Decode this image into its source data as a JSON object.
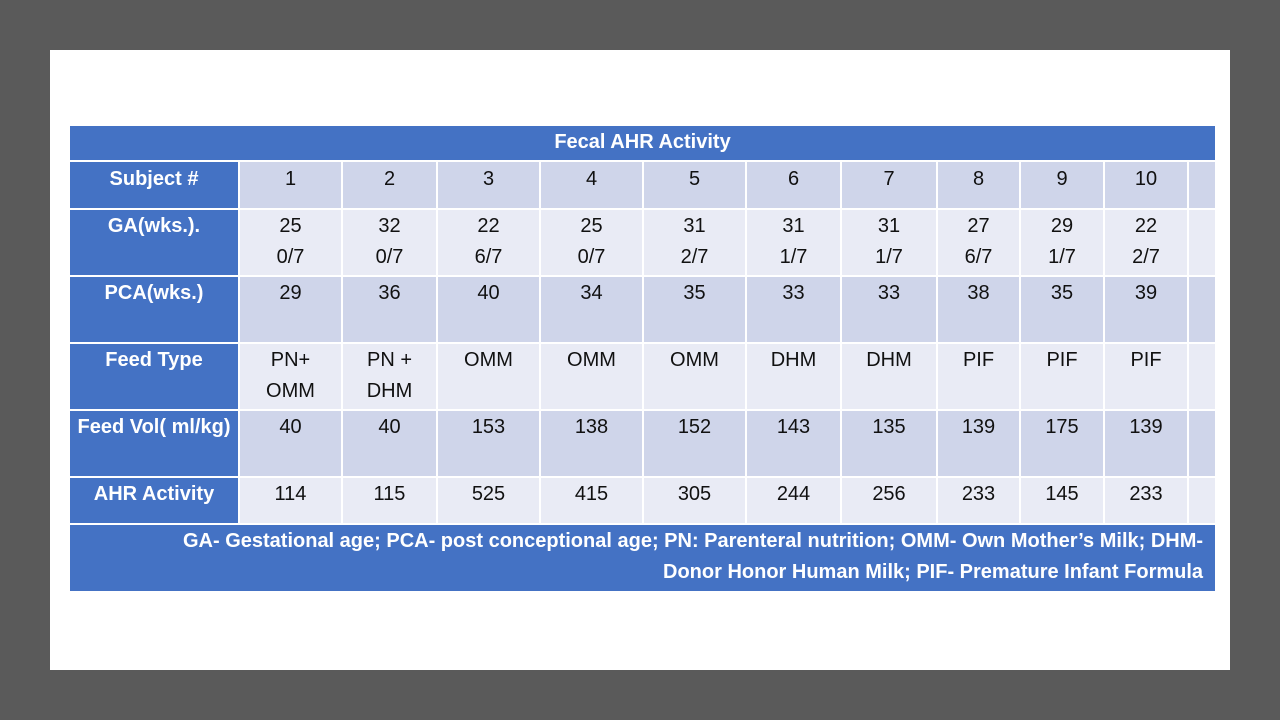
{
  "table": {
    "title": "Fecal AHR Activity",
    "rows": [
      {
        "header": [
          "Subject #"
        ],
        "cells": [
          [
            "1"
          ],
          [
            "2"
          ],
          [
            "3"
          ],
          [
            "4"
          ],
          [
            "5"
          ],
          [
            "6"
          ],
          [
            "7"
          ],
          [
            "8"
          ],
          [
            "9"
          ],
          [
            "10"
          ],
          [
            ""
          ]
        ]
      },
      {
        "header": [
          "GA",
          "(wks.)."
        ],
        "cells": [
          [
            "25",
            "0/7"
          ],
          [
            "32",
            "0/7"
          ],
          [
            "22",
            "6/7"
          ],
          [
            "25",
            "0/7"
          ],
          [
            "31",
            "2/7"
          ],
          [
            "31",
            "1/7"
          ],
          [
            "31",
            "1/7"
          ],
          [
            "27",
            "6/7"
          ],
          [
            "29",
            "1/7"
          ],
          [
            "22",
            "2/7"
          ],
          [
            ""
          ]
        ]
      },
      {
        "header": [
          "PCA",
          "(wks.)"
        ],
        "cells": [
          [
            "29"
          ],
          [
            "36"
          ],
          [
            "40"
          ],
          [
            "34"
          ],
          [
            "35"
          ],
          [
            "33"
          ],
          [
            "33"
          ],
          [
            "38"
          ],
          [
            "35"
          ],
          [
            "39"
          ],
          [
            ""
          ]
        ]
      },
      {
        "header": [
          "Feed Type"
        ],
        "cells": [
          [
            "PN+",
            "OMM"
          ],
          [
            "PN +",
            "DHM"
          ],
          [
            "OMM"
          ],
          [
            "OMM"
          ],
          [
            "OMM"
          ],
          [
            "DHM"
          ],
          [
            "DHM"
          ],
          [
            "PIF"
          ],
          [
            "PIF"
          ],
          [
            "PIF"
          ],
          [
            ""
          ]
        ]
      },
      {
        "header": [
          "Feed Vol",
          "( ml/kg)"
        ],
        "cells": [
          [
            "40"
          ],
          [
            "40"
          ],
          [
            "153"
          ],
          [
            "138"
          ],
          [
            "152"
          ],
          [
            "143"
          ],
          [
            "135"
          ],
          [
            "139"
          ],
          [
            "175"
          ],
          [
            "139"
          ],
          [
            ""
          ]
        ]
      },
      {
        "header": [
          "AHR Activity"
        ],
        "cells": [
          [
            "114"
          ],
          [
            "115"
          ],
          [
            "525"
          ],
          [
            "415"
          ],
          [
            "305"
          ],
          [
            "244"
          ],
          [
            "256"
          ],
          [
            "233"
          ],
          [
            "145"
          ],
          [
            "233"
          ],
          [
            ""
          ]
        ]
      }
    ],
    "footnote": [
      "GA- Gestational age; PCA- post conceptional age; PN: Parenteral nutrition; OMM-  Own  Mother’s Milk; DHM-",
      "Donor Honor Human Milk; PIF- Premature Infant Formula"
    ]
  },
  "colors": {
    "header_blue": "#4472c4",
    "band_dark": "#cfd5ea",
    "band_light": "#e9ebf5",
    "frame_gray": "#5a5a5a"
  }
}
